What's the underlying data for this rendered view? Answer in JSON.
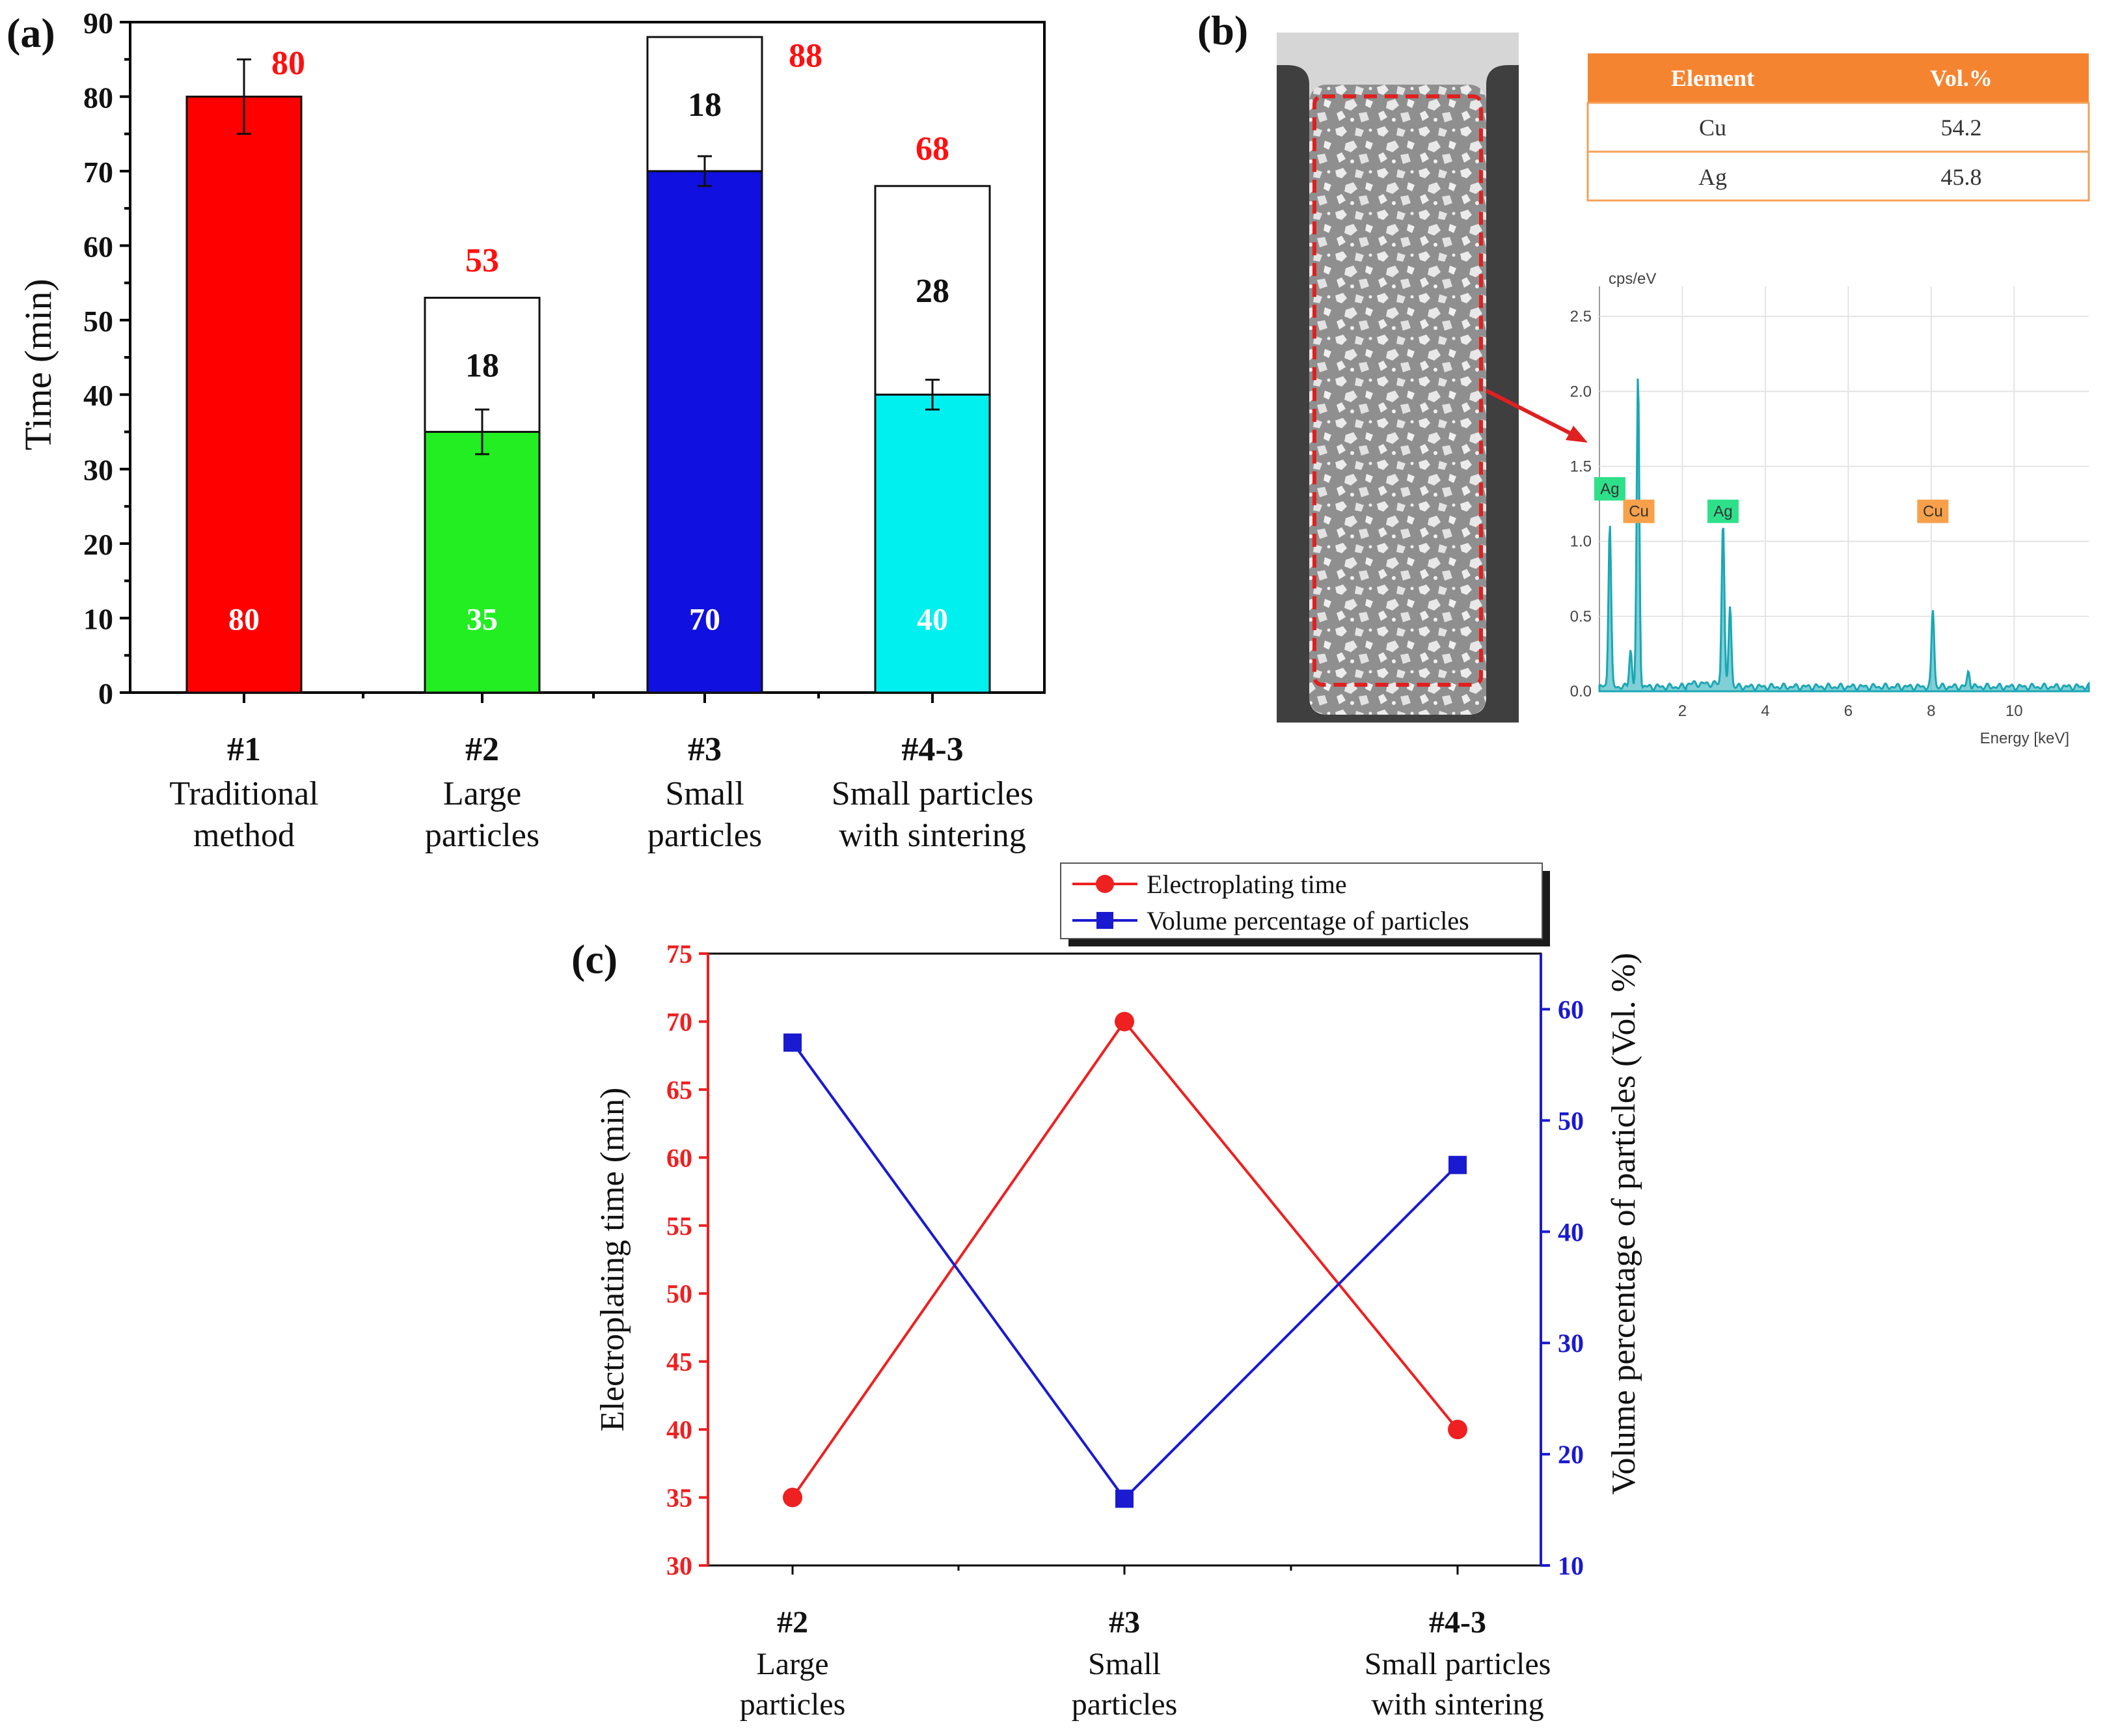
{
  "panel_labels": {
    "a": "(a)",
    "b": "(b)",
    "c": "(c)"
  },
  "colors": {
    "red": "#ff0000",
    "green": "#22ee22",
    "blue": "#1010e0",
    "cyan": "#00f0f0",
    "label_red": "#ff1010",
    "c_red": "#ee2020",
    "c_blue": "#1a1ad0",
    "table_header": "#f58430",
    "table_border": "#f5a05a",
    "spectrum": "#1aa7b5",
    "ag_tag": "#2ee08a",
    "cu_tag": "#f8a04a"
  },
  "chart_data": [
    {
      "type": "bar",
      "panel": "a",
      "ylabel": "Time (min)",
      "ylim": [
        0,
        90
      ],
      "yticks": [
        0,
        10,
        20,
        30,
        40,
        50,
        60,
        70,
        80,
        90
      ],
      "categories": [
        {
          "id": "#1",
          "lines": [
            "Traditional",
            "method"
          ]
        },
        {
          "id": "#2",
          "lines": [
            "Large",
            "particles"
          ]
        },
        {
          "id": "#3",
          "lines": [
            "Small",
            "particles"
          ]
        },
        {
          "id": "#4-3",
          "lines": [
            "Small particles",
            "with sintering"
          ]
        }
      ],
      "base_values": [
        80,
        35,
        70,
        40
      ],
      "base_labels": [
        "80",
        "35",
        "70",
        "40"
      ],
      "base_colors": [
        "#ff0000",
        "#22ee22",
        "#1010e0",
        "#00f0f0"
      ],
      "errors": [
        5,
        3,
        2,
        2
      ],
      "stack_values": [
        0,
        18,
        18,
        28
      ],
      "stack_labels": [
        "",
        "18",
        "18",
        "28"
      ],
      "total_labels": [
        "80",
        "53",
        "88",
        "68"
      ]
    },
    {
      "type": "table",
      "panel": "b",
      "columns": [
        "Element",
        "Vol.%"
      ],
      "rows": [
        [
          "Cu",
          "54.2"
        ],
        [
          "Ag",
          "45.8"
        ]
      ]
    },
    {
      "type": "line",
      "panel": "b-spectrum",
      "ylabel": "cps/eV",
      "xlabel": "Energy [keV]",
      "xlim": [
        0,
        11.8
      ],
      "ylim": [
        0,
        2.7
      ],
      "xticks": [
        2,
        4,
        6,
        8,
        10
      ],
      "yticks": [
        0.0,
        0.5,
        1.0,
        1.5,
        2.0,
        2.5
      ],
      "ytick_labels": [
        "0.0",
        "0.5",
        "1.0",
        "1.5",
        "2.0",
        "2.5"
      ],
      "peaks": [
        {
          "x": 0.25,
          "y": 1.1
        },
        {
          "x": 0.75,
          "y": 0.25
        },
        {
          "x": 0.93,
          "y": 2.07
        },
        {
          "x": 2.98,
          "y": 1.12
        },
        {
          "x": 3.15,
          "y": 0.55
        },
        {
          "x": 8.04,
          "y": 0.52
        },
        {
          "x": 8.9,
          "y": 0.1
        }
      ],
      "tags": [
        {
          "label": "Ag",
          "x": 0.25,
          "y": 1.35,
          "kind": "ag"
        },
        {
          "label": "Cu",
          "x": 0.95,
          "y": 1.2,
          "kind": "cu"
        },
        {
          "label": "Ag",
          "x": 2.98,
          "y": 1.2,
          "kind": "ag"
        },
        {
          "label": "Cu",
          "x": 8.04,
          "y": 1.2,
          "kind": "cu"
        }
      ]
    },
    {
      "type": "line",
      "panel": "c",
      "categories": [
        {
          "id": "#2",
          "lines": [
            "Large",
            "particles"
          ]
        },
        {
          "id": "#3",
          "lines": [
            "Small",
            "particles"
          ]
        },
        {
          "id": "#4-3",
          "lines": [
            "Small particles",
            "with sintering"
          ]
        }
      ],
      "series": [
        {
          "name": "Electroplating time",
          "axis": "left",
          "values": [
            35,
            70,
            40
          ],
          "color": "#ee2020",
          "marker": "circle"
        },
        {
          "name": "Volume percentage of particles",
          "axis": "right",
          "values": [
            57,
            16,
            46
          ],
          "color": "#1a1ad0",
          "marker": "square"
        }
      ],
      "ylabel_left": "Electroplating time (min)",
      "ylabel_right": "Volume percentage of particles (Vol. %)",
      "ylim_left": [
        30,
        75
      ],
      "ylim_right": [
        10,
        65
      ],
      "yticks_left": [
        30,
        35,
        40,
        45,
        50,
        55,
        60,
        65,
        70,
        75
      ],
      "yticks_right": [
        10,
        20,
        30,
        40,
        50,
        60
      ],
      "legend_position": "top-right"
    }
  ]
}
